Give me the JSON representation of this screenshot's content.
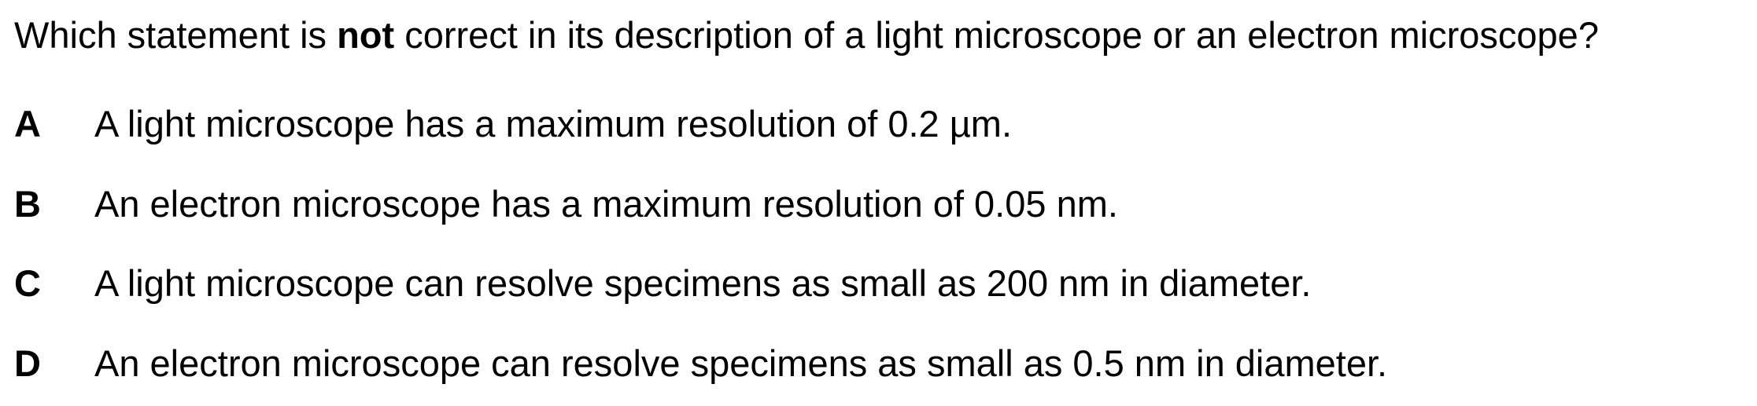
{
  "question": {
    "before": "Which statement is ",
    "emphasis": "not",
    "after": " correct in its description of a light microscope or an electron microscope?"
  },
  "options": [
    {
      "letter": "A",
      "text": "A light microscope has a maximum resolution of 0.2 µm."
    },
    {
      "letter": "B",
      "text": "An electron microscope has a maximum resolution of 0.05 nm."
    },
    {
      "letter": "C",
      "text": "A light microscope can resolve specimens as small as 200 nm in diameter."
    },
    {
      "letter": "D",
      "text": "An electron microscope can resolve specimens as small as 0.5 nm in diameter."
    }
  ]
}
